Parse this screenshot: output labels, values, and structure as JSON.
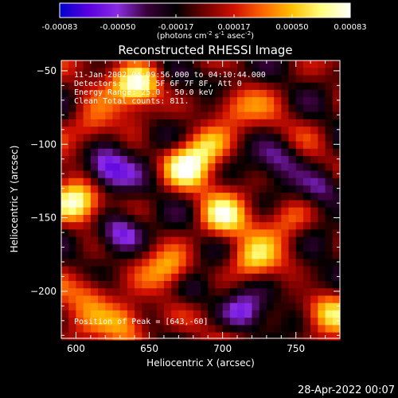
{
  "chart_data": {
    "type": "heatmap",
    "title": "Reconstructed RHESSI Image",
    "xlabel": "Heliocentric X (arcsec)",
    "ylabel": "Heliocentric Y (arcsec)",
    "xlim": [
      590,
      780
    ],
    "ylim": [
      -232,
      -43
    ],
    "xticks": [
      600,
      650,
      700,
      750
    ],
    "yticks": [
      -50,
      -100,
      -150,
      -200
    ],
    "colorbar": {
      "min": -0.00083,
      "max": 0.00083,
      "ticks": [
        "-0.00083",
        "-0.00050",
        "-0.00017",
        "0.00017",
        "0.00050",
        "0.00083"
      ],
      "unit_parts": [
        "(photons cm",
        "-2",
        " s",
        "-1",
        " asec",
        "-2",
        ")"
      ],
      "colors": [
        "#0000cc",
        "#5a00e0",
        "#8a2be2",
        "#3a003a",
        "#000000",
        "#700000",
        "#d01000",
        "#ff6600",
        "#ffc000",
        "#ffff80",
        "#ffffff"
      ]
    },
    "annotations": [
      "11-Jan-2002 04:09:56.000 to 04:10:44.000",
      "Detectors: 3F 4F 5F 6F 7F 8F, Att 0",
      "Energy Range: 25.0 - 50.0 keV",
      "Clean    Total counts: 811."
    ],
    "peak_label": "Position of Peak = [643,-60]",
    "peak": [
      643,
      -60
    ],
    "blobs": [
      {
        "x": 643,
        "y": -60,
        "v": 0.0008
      },
      {
        "x": 600,
        "y": -140,
        "v": 0.0007
      },
      {
        "x": 610,
        "y": -90,
        "v": 0.00045
      },
      {
        "x": 675,
        "y": -115,
        "v": 0.0006
      },
      {
        "x": 690,
        "y": -100,
        "v": 0.0005
      },
      {
        "x": 700,
        "y": -150,
        "v": 0.00055
      },
      {
        "x": 720,
        "y": -180,
        "v": 0.0005
      },
      {
        "x": 635,
        "y": -220,
        "v": 0.0006
      },
      {
        "x": 610,
        "y": -200,
        "v": 0.0004
      },
      {
        "x": 770,
        "y": -215,
        "v": 0.0005
      },
      {
        "x": 705,
        "y": -75,
        "v": 0.0004
      },
      {
        "x": 665,
        "y": -185,
        "v": 0.0004
      },
      {
        "x": 745,
        "y": -150,
        "v": 0.00035
      },
      {
        "x": 620,
        "y": -118,
        "v": -0.00065
      },
      {
        "x": 630,
        "y": -160,
        "v": -0.0007
      },
      {
        "x": 740,
        "y": -110,
        "v": -0.00045
      },
      {
        "x": 770,
        "y": -130,
        "v": -0.0005
      },
      {
        "x": 715,
        "y": -215,
        "v": -0.0005
      },
      {
        "x": 655,
        "y": -95,
        "v": -0.0004
      },
      {
        "x": 700,
        "y": -55,
        "v": -0.0004
      },
      {
        "x": 760,
        "y": -195,
        "v": -0.0004
      },
      {
        "x": 680,
        "y": -200,
        "v": -0.00035
      }
    ]
  },
  "footer": {
    "timestamp": "28-Apr-2022 00:07"
  }
}
